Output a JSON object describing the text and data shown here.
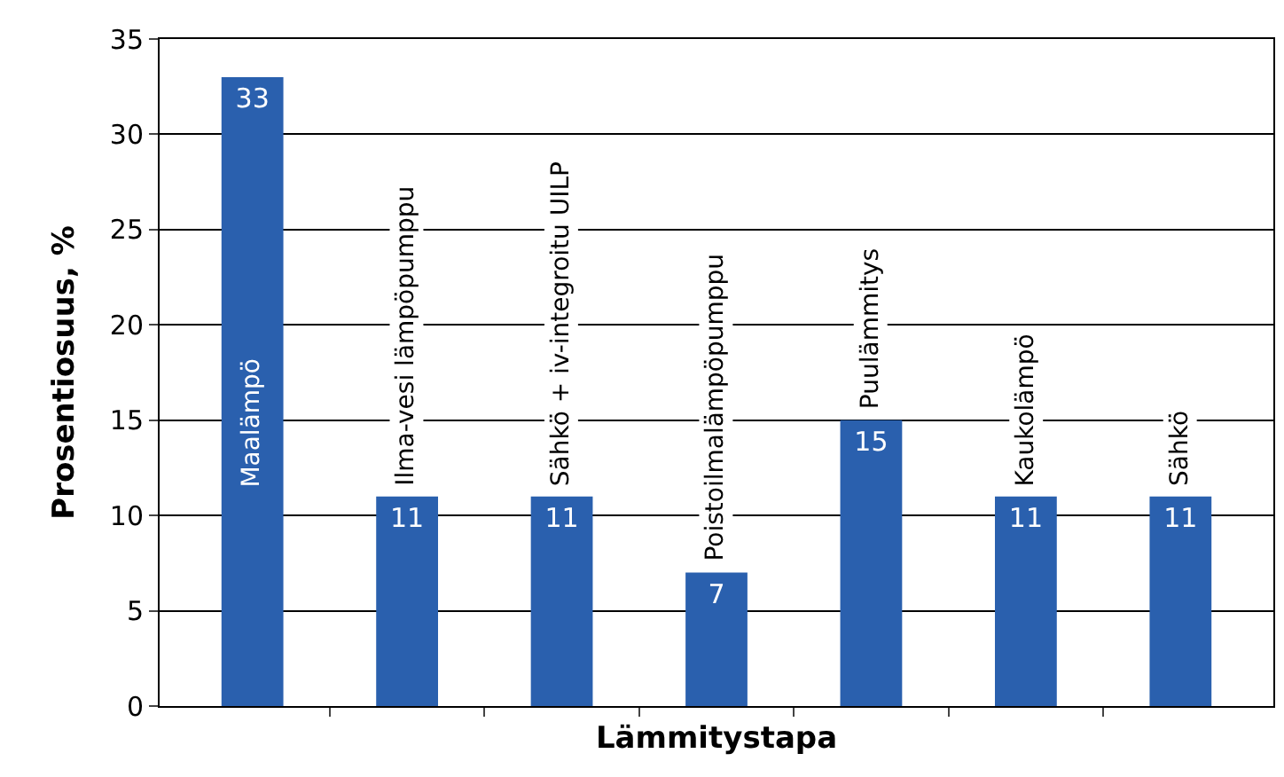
{
  "chart_data": {
    "type": "bar",
    "xlabel": "Lämmitystapa",
    "ylabel": "Prosentiosuus, %",
    "categories": [
      "Maalämpö",
      "Ilma-vesi lämpöpumppu",
      "Sähkö + iv-integroitu UILP",
      "Poistoilmalämpöpumppu",
      "Puulämmitys",
      "Kaukolämpö",
      "Sähkö"
    ],
    "values": [
      33,
      11,
      11,
      7,
      15,
      11,
      11
    ],
    "color": "#2a60ae",
    "ylim": [
      0,
      35
    ],
    "yticks": [
      0,
      5,
      10,
      15,
      20,
      25,
      30,
      35
    ],
    "grid": "y",
    "data_labels": true,
    "tick_labels": "y",
    "legend": false
  }
}
